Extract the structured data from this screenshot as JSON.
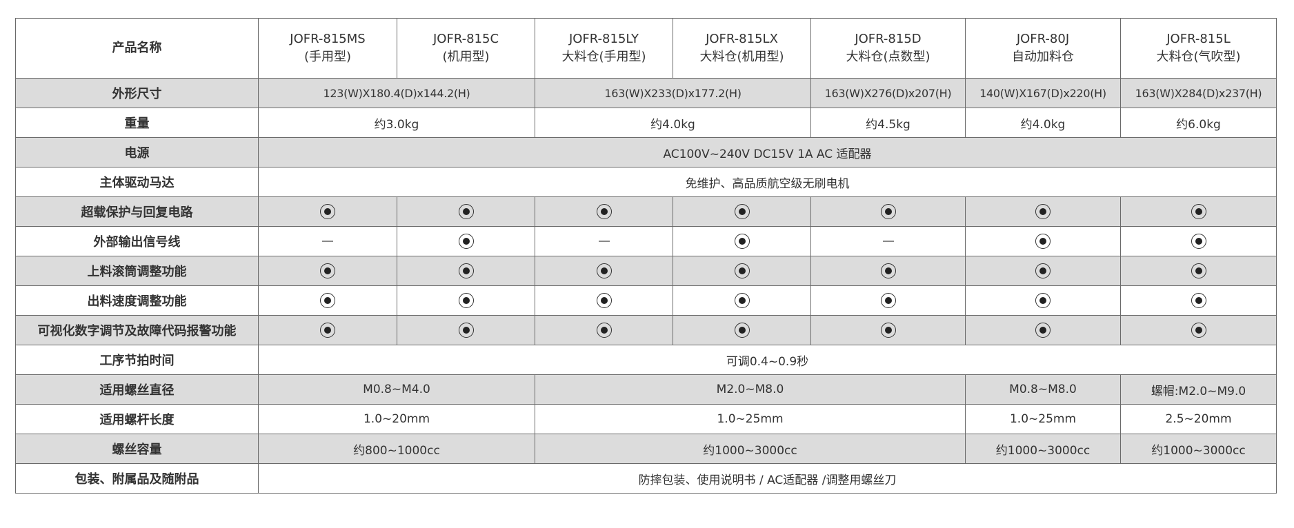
{
  "header": {
    "label": "产品名称",
    "models": [
      {
        "name": "JOFR-815MS",
        "sub": "(手用型)"
      },
      {
        "name": "JOFR-815C",
        "sub": "(机用型)"
      },
      {
        "name": "JOFR-815LY",
        "sub": "大料仓(手用型)"
      },
      {
        "name": "JOFR-815LX",
        "sub": "大料仓(机用型)"
      },
      {
        "name": "JOFR-815D",
        "sub": "大料仓(点数型)"
      },
      {
        "name": "JOFR-80J",
        "sub": "自动加料仓"
      },
      {
        "name": "JOFR-815L",
        "sub": "大料仓(气吹型)"
      }
    ]
  },
  "rows": [
    {
      "label": "外形尺寸",
      "cells": [
        {
          "text": "123(W)X180.4(D)x144.2(H)",
          "span": 2
        },
        {
          "text": "163(W)X233(D)x177.2(H)",
          "span": 2
        },
        {
          "text": "163(W)X276(D)x207(H)",
          "span": 1
        },
        {
          "text": "140(W)X167(D)x220(H)",
          "span": 1
        },
        {
          "text": "163(W)X284(D)x237(H)",
          "span": 1
        }
      ]
    },
    {
      "label": "重量",
      "cells": [
        {
          "text": "约3.0kg",
          "span": 2
        },
        {
          "text": "约4.0kg",
          "span": 2
        },
        {
          "text": "约4.5kg",
          "span": 1
        },
        {
          "text": "约4.0kg",
          "span": 1
        },
        {
          "text": "约6.0kg",
          "span": 1
        }
      ]
    },
    {
      "label": "电源",
      "cells": [
        {
          "text": "AC100V~240V DC15V 1A AC 适配器",
          "span": 7
        }
      ]
    },
    {
      "label": "主体驱动马达",
      "cells": [
        {
          "text": "免维护、高品质航空级无刷电机",
          "span": 7
        }
      ]
    },
    {
      "label": "超载保护与回复电路",
      "marks": [
        "yes",
        "yes",
        "yes",
        "yes",
        "yes",
        "yes",
        "yes"
      ]
    },
    {
      "label": "外部输出信号线",
      "marks": [
        "no",
        "yes",
        "no",
        "yes",
        "no",
        "yes",
        "yes"
      ]
    },
    {
      "label": "上料滚筒调整功能",
      "marks": [
        "yes",
        "yes",
        "yes",
        "yes",
        "yes",
        "yes",
        "yes"
      ]
    },
    {
      "label": "出料速度调整功能",
      "marks": [
        "yes",
        "yes",
        "yes",
        "yes",
        "yes",
        "yes",
        "yes"
      ]
    },
    {
      "label": "可视化数字调节及故障代码报警功能",
      "marks": [
        "yes",
        "yes",
        "yes",
        "yes",
        "yes",
        "yes",
        "yes"
      ]
    },
    {
      "label": "工序节拍时间",
      "cells": [
        {
          "text": "可调0.4~0.9秒",
          "span": 7
        }
      ]
    },
    {
      "label": "适用螺丝直径",
      "cells": [
        {
          "text": "M0.8~M4.0",
          "span": 2
        },
        {
          "text": "M2.0~M8.0",
          "span": 3
        },
        {
          "text": "M0.8~M8.0",
          "span": 1
        },
        {
          "text": "螺帽:M2.0~M9.0",
          "span": 1
        }
      ]
    },
    {
      "label": "适用螺杆长度",
      "cells": [
        {
          "text": "1.0~20mm",
          "span": 2
        },
        {
          "text": "1.0~25mm",
          "span": 3
        },
        {
          "text": "1.0~25mm",
          "span": 1
        },
        {
          "text": "2.5~20mm",
          "span": 1
        }
      ]
    },
    {
      "label": "螺丝容量",
      "cells": [
        {
          "text": "约800~1000cc",
          "span": 2
        },
        {
          "text": "约1000~3000cc",
          "span": 3
        },
        {
          "text": "约1000~3000cc",
          "span": 1
        },
        {
          "text": "约1000~3000cc",
          "span": 1
        }
      ]
    },
    {
      "label": "包装、附属品及随附品",
      "cells": [
        {
          "text": "防摔包装、使用说明书 / AC适配器 /调整用螺丝刀",
          "span": 7
        }
      ]
    }
  ],
  "icons": {
    "yes": "circled-dot-icon",
    "no": "dash-icon"
  },
  "colors": {
    "shaded_row": "#dcdcdc",
    "border": "#6a6a6a"
  }
}
